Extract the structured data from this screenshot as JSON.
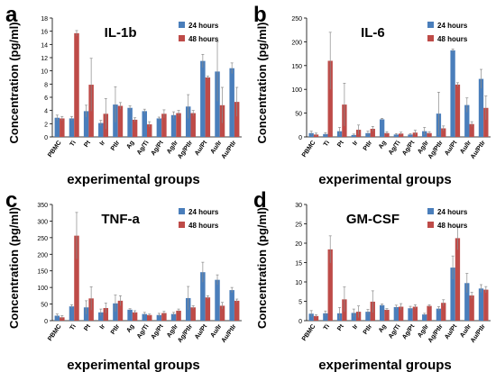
{
  "figure": {
    "series_colors": {
      "24 hours": "#4a7ebb",
      "48 hours": "#be4b48"
    }
  },
  "chart_data": [
    {
      "panel_letter": "a",
      "type": "bar",
      "title": "IL-1b",
      "ylabel": "Concentration (pg/ml)",
      "xlabel": "experimental groups",
      "ylim": [
        0,
        18
      ],
      "yticks": [
        0,
        2,
        4,
        6,
        8,
        10,
        12,
        14,
        16,
        18
      ],
      "grid": false,
      "legend_position": "top-right",
      "categories": [
        "PBMC",
        "Ti",
        "Pt",
        "Ir",
        "Ptlr",
        "Ag",
        "Ag/Ti",
        "Ag/Pt",
        "Ag/Ir",
        "Ag/Ptlr",
        "Au/Pt",
        "Au/Ir",
        "Au/Ptlr"
      ],
      "series": [
        {
          "name": "24 hours",
          "values": [
            2.9,
            2.8,
            3.9,
            2.1,
            4.9,
            4.4,
            3.9,
            2.8,
            3.3,
            4.6,
            11.5,
            9.9,
            10.4
          ],
          "errors": [
            0.4,
            0.3,
            0.9,
            0.4,
            2.7,
            0.3,
            0.3,
            0.2,
            0.5,
            1.8,
            1.0,
            4.5,
            0.8
          ]
        },
        {
          "name": "48 hours",
          "values": [
            2.8,
            15.7,
            7.9,
            3.5,
            4.7,
            2.6,
            1.9,
            3.5,
            3.6,
            3.6,
            9.0,
            4.8,
            5.3
          ],
          "errors": [
            0.3,
            0.4,
            4.0,
            2.3,
            0.5,
            0.3,
            0.4,
            0.6,
            0.4,
            0.4,
            0.2,
            2.7,
            2.2
          ]
        }
      ]
    },
    {
      "panel_letter": "b",
      "type": "bar",
      "title": "IL-6",
      "ylabel": "Concentration (pg/ml)",
      "xlabel": "experimental groups",
      "ylim": [
        0,
        250
      ],
      "yticks": [
        0,
        50,
        100,
        150,
        200,
        250
      ],
      "grid": false,
      "legend_position": "top-right",
      "categories": [
        "PBMC",
        "Ti",
        "Pt",
        "Ir",
        "Ptlr",
        "Ag",
        "Ag/Ti",
        "Ag/Pt",
        "Ag/Ir",
        "Ag/Ptlr",
        "Au/Pt",
        "Au/Ir",
        "Au/Ptlr"
      ],
      "series": [
        {
          "name": "24 hours",
          "values": [
            8,
            6,
            12,
            4,
            8,
            37,
            5,
            5,
            12,
            49,
            182,
            67,
            122
          ],
          "errors": [
            4,
            3,
            8,
            2,
            4,
            2,
            2,
            2,
            8,
            45,
            3,
            15,
            20
          ]
        },
        {
          "name": "48 hours",
          "values": [
            5,
            160,
            68,
            15,
            17,
            8,
            7,
            9,
            8,
            18,
            110,
            27,
            61
          ],
          "errors": [
            3,
            60,
            45,
            10,
            5,
            3,
            3,
            5,
            3,
            5,
            4,
            5,
            25
          ]
        }
      ]
    },
    {
      "panel_letter": "c",
      "type": "bar",
      "title": "TNF-a",
      "ylabel": "Concentration (pg/ml)",
      "xlabel": "experimental groups",
      "ylim": [
        0,
        350
      ],
      "yticks": [
        0,
        50,
        100,
        150,
        200,
        250,
        300,
        350
      ],
      "grid": false,
      "legend_position": "top-right",
      "categories": [
        "PBMC",
        "Ti",
        "Pt",
        "Ir",
        "Ptlr",
        "Ag",
        "Ag/Ti",
        "Ag/Pt",
        "Ag/Ir",
        "Ag/Ptlr",
        "Au/Pt",
        "Au/Ir",
        "Au/Ptlr"
      ],
      "series": [
        {
          "name": "24 hours",
          "values": [
            15,
            43,
            40,
            25,
            52,
            33,
            20,
            17,
            20,
            68,
            146,
            123,
            92
          ],
          "errors": [
            5,
            5,
            20,
            10,
            25,
            3,
            5,
            5,
            5,
            35,
            30,
            15,
            8
          ]
        },
        {
          "name": "48 hours",
          "values": [
            10,
            256,
            67,
            38,
            60,
            25,
            17,
            23,
            30,
            40,
            70,
            45,
            60
          ],
          "errors": [
            5,
            70,
            35,
            15,
            15,
            5,
            3,
            5,
            5,
            5,
            5,
            10,
            5
          ]
        }
      ]
    },
    {
      "panel_letter": "d",
      "type": "bar",
      "title": "GM-CSF",
      "ylabel": "Concentration (pg/ml)",
      "xlabel": "experimental groups",
      "ylim": [
        0,
        30
      ],
      "yticks": [
        0,
        5,
        10,
        15,
        20,
        25,
        30
      ],
      "grid": false,
      "legend_position": "top-right",
      "categories": [
        "PBMC",
        "Ti",
        "Pt",
        "Ir",
        "Ptlr",
        "Ag",
        "Ag/Ti",
        "Ag/Pt",
        "Ag/Ir",
        "Ag/Ptlr",
        "Au/Pt",
        "Au/Ir",
        "Au/Ptlr"
      ],
      "series": [
        {
          "name": "24 hours",
          "values": [
            1.8,
            1.9,
            1.9,
            2.0,
            2.3,
            4.0,
            3.5,
            3.2,
            1.6,
            3.1,
            13.7,
            9.7,
            8.3
          ],
          "errors": [
            0.8,
            0.6,
            1.5,
            1.0,
            0.6,
            0.3,
            0.5,
            0.5,
            0.3,
            0.5,
            3.0,
            2.5,
            1.0
          ]
        },
        {
          "name": "48 hours",
          "values": [
            1.2,
            18.4,
            5.5,
            2.3,
            4.9,
            2.8,
            3.6,
            3.6,
            3.8,
            4.6,
            21.3,
            6.5,
            8.0
          ],
          "errors": [
            0.3,
            3.5,
            3.2,
            1.5,
            2.8,
            0.3,
            0.8,
            0.5,
            0.3,
            0.8,
            3.0,
            0.8,
            0.8
          ]
        }
      ]
    }
  ]
}
